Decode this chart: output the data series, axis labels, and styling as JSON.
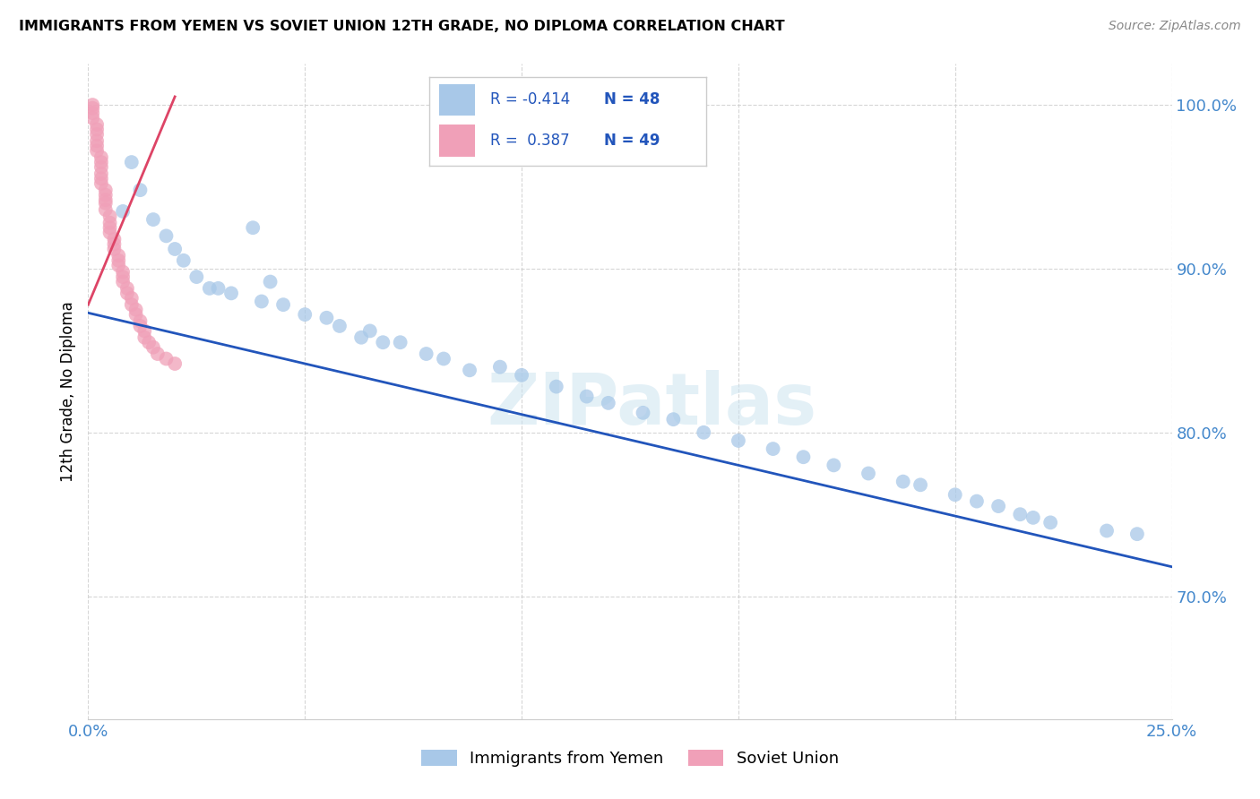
{
  "title": "IMMIGRANTS FROM YEMEN VS SOVIET UNION 12TH GRADE, NO DIPLOMA CORRELATION CHART",
  "source": "Source: ZipAtlas.com",
  "ylabel_label": "12th Grade, No Diploma",
  "xlim": [
    0.0,
    0.25
  ],
  "ylim": [
    0.625,
    1.025
  ],
  "r_yemen": -0.414,
  "n_yemen": 48,
  "r_soviet": 0.387,
  "n_soviet": 49,
  "legend_label_yemen": "Immigrants from Yemen",
  "legend_label_soviet": "Soviet Union",
  "color_yemen": "#a8c8e8",
  "color_soviet": "#f0a0b8",
  "line_color_yemen": "#2255bb",
  "line_color_soviet": "#dd4466",
  "watermark_text": "ZIPatlas",
  "yemen_line_x0": 0.0,
  "yemen_line_y0": 0.873,
  "yemen_line_x1": 0.25,
  "yemen_line_y1": 0.718,
  "soviet_line_x0": 0.0,
  "soviet_line_y0": 0.878,
  "soviet_line_x1": 0.02,
  "soviet_line_y1": 1.005,
  "yemen_x": [
    0.008,
    0.01,
    0.012,
    0.015,
    0.018,
    0.02,
    0.022,
    0.025,
    0.028,
    0.03,
    0.033,
    0.038,
    0.04,
    0.042,
    0.045,
    0.05,
    0.055,
    0.058,
    0.063,
    0.065,
    0.068,
    0.072,
    0.078,
    0.082,
    0.088,
    0.095,
    0.1,
    0.108,
    0.115,
    0.12,
    0.128,
    0.135,
    0.142,
    0.15,
    0.158,
    0.165,
    0.172,
    0.18,
    0.188,
    0.192,
    0.2,
    0.205,
    0.21,
    0.215,
    0.218,
    0.222,
    0.235,
    0.242
  ],
  "yemen_y": [
    0.935,
    0.965,
    0.948,
    0.93,
    0.92,
    0.912,
    0.905,
    0.895,
    0.888,
    0.888,
    0.885,
    0.925,
    0.88,
    0.892,
    0.878,
    0.872,
    0.87,
    0.865,
    0.858,
    0.862,
    0.855,
    0.855,
    0.848,
    0.845,
    0.838,
    0.84,
    0.835,
    0.828,
    0.822,
    0.818,
    0.812,
    0.808,
    0.8,
    0.795,
    0.79,
    0.785,
    0.78,
    0.775,
    0.77,
    0.768,
    0.762,
    0.758,
    0.755,
    0.75,
    0.748,
    0.745,
    0.74,
    0.738
  ],
  "soviet_x": [
    0.001,
    0.001,
    0.001,
    0.001,
    0.002,
    0.002,
    0.002,
    0.002,
    0.002,
    0.002,
    0.003,
    0.003,
    0.003,
    0.003,
    0.003,
    0.003,
    0.004,
    0.004,
    0.004,
    0.004,
    0.004,
    0.005,
    0.005,
    0.005,
    0.005,
    0.006,
    0.006,
    0.006,
    0.007,
    0.007,
    0.007,
    0.008,
    0.008,
    0.008,
    0.009,
    0.009,
    0.01,
    0.01,
    0.011,
    0.011,
    0.012,
    0.012,
    0.013,
    0.013,
    0.014,
    0.015,
    0.016,
    0.018,
    0.02
  ],
  "soviet_y": [
    1.0,
    0.998,
    0.995,
    0.992,
    0.988,
    0.985,
    0.982,
    0.978,
    0.975,
    0.972,
    0.968,
    0.965,
    0.962,
    0.958,
    0.955,
    0.952,
    0.948,
    0.945,
    0.942,
    0.94,
    0.936,
    0.932,
    0.928,
    0.925,
    0.922,
    0.918,
    0.915,
    0.912,
    0.908,
    0.905,
    0.902,
    0.898,
    0.895,
    0.892,
    0.888,
    0.885,
    0.882,
    0.878,
    0.875,
    0.872,
    0.868,
    0.865,
    0.862,
    0.858,
    0.855,
    0.852,
    0.848,
    0.845,
    0.842
  ]
}
